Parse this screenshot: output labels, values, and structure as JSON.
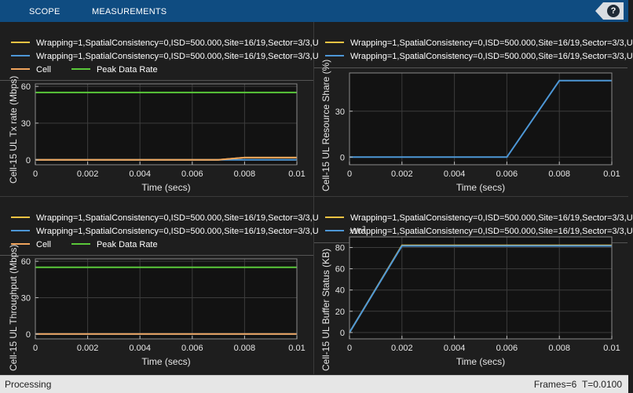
{
  "toolbar": {
    "tabs": [
      "SCOPE",
      "MEASUREMENTS"
    ],
    "help_label": "?"
  },
  "status": {
    "state": "Processing",
    "frames": "Frames=6",
    "time": "T=0.0100"
  },
  "colors": {
    "background": "#1e1e1e",
    "axes_bg": "#121212",
    "orange": "#f0a45c",
    "blue": "#4d97d6",
    "yellow": "#f2c343",
    "green": "#5ac83a"
  },
  "panels": [
    {
      "legend": [
        {
          "label": "Wrapping=1,SpatialConsistency=0,ISD=500.000,Site=16/19,Sector=3/3,U",
          "color": "yellow"
        },
        {
          "label": "Wrapping=1,SpatialConsistency=0,ISD=500.000,Site=16/19,Sector=3/3,U",
          "color": "blue"
        },
        {
          "label": "Cell",
          "color": "orange"
        },
        {
          "label": "Peak Data Rate",
          "color": "green"
        }
      ],
      "ylabel": "Cell-15 UL Tx rate (Mbps)",
      "xlabel": "Time (secs)"
    },
    {
      "legend": [
        {
          "label": "Wrapping=1,SpatialConsistency=0,ISD=500.000,Site=16/19,Sector=3/3,U",
          "color": "yellow"
        },
        {
          "label": "Wrapping=1,SpatialConsistency=0,ISD=500.000,Site=16/19,Sector=3/3,U",
          "color": "blue"
        }
      ],
      "ylabel": "Cell-15 UL Resource Share (%)",
      "xlabel": "Time (secs)"
    },
    {
      "legend": [
        {
          "label": "Wrapping=1,SpatialConsistency=0,ISD=500.000,Site=16/19,Sector=3/3,U",
          "color": "yellow"
        },
        {
          "label": "Wrapping=1,SpatialConsistency=0,ISD=500.000,Site=16/19,Sector=3/3,U",
          "color": "blue"
        },
        {
          "label": "Cell",
          "color": "orange"
        },
        {
          "label": "Peak Data Rate",
          "color": "green"
        }
      ],
      "ylabel": "Cell-15 UL Throughput (Mbps)",
      "xlabel": "Time (secs)"
    },
    {
      "legend": [
        {
          "label": "Wrapping=1,SpatialConsistency=0,ISD=500.000,Site=16/19,Sector=3/3,U",
          "color": "yellow"
        },
        {
          "label": "Wrapping=1,SpatialConsistency=0,ISD=500.000,Site=16/19,Sector=3/3,U",
          "color": "blue"
        }
      ],
      "ylabel": "Cell-15 UL Buffer Status (KB)",
      "xlabel": "Time (secs)",
      "exponent": "x10^3"
    }
  ],
  "chart_data": [
    {
      "type": "line",
      "title": "",
      "xlabel": "Time (secs)",
      "ylabel": "Cell-15 UL Tx rate (Mbps)",
      "xlim": [
        0,
        0.01
      ],
      "ylim": [
        -4,
        62
      ],
      "xticks": [
        "0",
        "0.002",
        "0.004",
        "0.006",
        "0.008",
        "0.01"
      ],
      "yticks": [
        "0",
        "30",
        "60"
      ],
      "grid": true,
      "series": [
        {
          "name": "Wrapping=1,SpatialConsistency=0,ISD=500.000,Site=16/19,Sector=3/3,U",
          "color": "#f2c343",
          "x": [
            0,
            0.007,
            0.008,
            0.01
          ],
          "y": [
            0,
            0,
            1.8,
            1.8
          ]
        },
        {
          "name": "Wrapping=1,SpatialConsistency=0,ISD=500.000,Site=16/19,Sector=3/3,U",
          "color": "#4d97d6",
          "x": [
            0,
            0.01
          ],
          "y": [
            0,
            0
          ]
        },
        {
          "name": "Cell",
          "color": "#f0a45c",
          "x": [
            0,
            0.007,
            0.008,
            0.01
          ],
          "y": [
            0,
            0,
            1.8,
            1.8
          ]
        },
        {
          "name": "Peak Data Rate",
          "color": "#5ac83a",
          "x": [
            0,
            0.01
          ],
          "y": [
            55,
            55
          ]
        }
      ]
    },
    {
      "type": "line",
      "title": "",
      "xlabel": "Time (secs)",
      "ylabel": "Cell-15 UL Resource Share (%)",
      "xlim": [
        0,
        0.01
      ],
      "ylim": [
        -5,
        55
      ],
      "xticks": [
        "0",
        "0.002",
        "0.004",
        "0.006",
        "0.008",
        "0.01"
      ],
      "yticks": [
        "0",
        "30"
      ],
      "grid": true,
      "series": [
        {
          "name": "Wrapping=1,SpatialConsistency=0,ISD=500.000,Site=16/19,Sector=3/3,U",
          "color": "#4d97d6",
          "x": [
            0,
            0.006,
            0.008,
            0.01
          ],
          "y": [
            0,
            0,
            50,
            50
          ]
        }
      ]
    },
    {
      "type": "line",
      "title": "",
      "xlabel": "Time (secs)",
      "ylabel": "Cell-15 UL Throughput (Mbps)",
      "xlim": [
        0,
        0.01
      ],
      "ylim": [
        -4,
        62
      ],
      "xticks": [
        "0",
        "0.002",
        "0.004",
        "0.006",
        "0.008",
        "0.01"
      ],
      "yticks": [
        "0",
        "30",
        "60"
      ],
      "grid": true,
      "series": [
        {
          "name": "Wrapping=1,SpatialConsistency=0,ISD=500.000,Site=16/19,Sector=3/3,U",
          "color": "#4d97d6",
          "x": [
            0,
            0.01
          ],
          "y": [
            0,
            0
          ]
        },
        {
          "name": "Cell",
          "color": "#f0a45c",
          "x": [
            0,
            0.01
          ],
          "y": [
            0,
            0
          ]
        },
        {
          "name": "Peak Data Rate",
          "color": "#5ac83a",
          "x": [
            0,
            0.01
          ],
          "y": [
            55,
            55
          ]
        }
      ]
    },
    {
      "type": "line",
      "title": "",
      "xlabel": "Time (secs)",
      "ylabel": "Cell-15 UL Buffer Status (KB)",
      "xlim": [
        0,
        0.01
      ],
      "ylim": [
        -6,
        90
      ],
      "xticks": [
        "0",
        "0.002",
        "0.004",
        "0.006",
        "0.008",
        "0.01"
      ],
      "yticks": [
        "0",
        "20",
        "40",
        "60",
        "80"
      ],
      "grid": true,
      "series": [
        {
          "name": "Wrapping=1,SpatialConsistency=0,ISD=500.000,Site=16/19,Sector=3/3,U",
          "color": "#f2c343",
          "x": [
            0,
            0.002,
            0.01
          ],
          "y": [
            0,
            82,
            82
          ]
        },
        {
          "name": "Wrapping=1,SpatialConsistency=0,ISD=500.000,Site=16/19,Sector=3/3,U",
          "color": "#4d97d6",
          "x": [
            0,
            0.002,
            0.01
          ],
          "y": [
            0,
            81.5,
            81.5
          ]
        }
      ]
    }
  ]
}
